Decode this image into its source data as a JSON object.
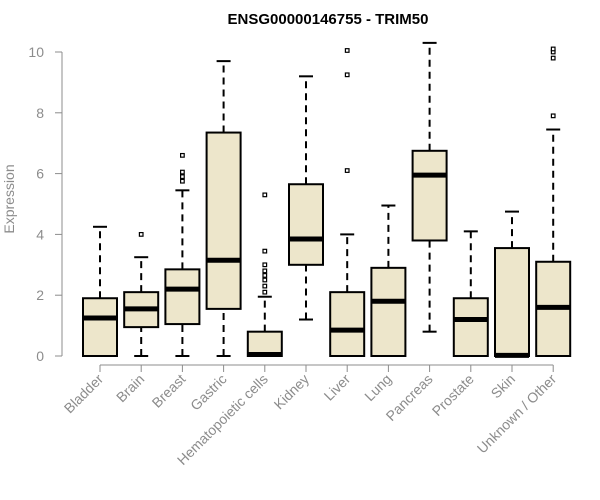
{
  "chart_data": {
    "type": "box",
    "title": "ENSG00000146755 - TRIM50",
    "ylabel": "Expression",
    "xlabel": "",
    "ylim": [
      0,
      10
    ],
    "yticks": [
      0,
      2,
      4,
      6,
      8,
      10
    ],
    "categories": [
      "Bladder",
      "Brain",
      "Breast",
      "Gastric",
      "Hematopoietic cells",
      "Kidney",
      "Liver",
      "Lung",
      "Pancreas",
      "Prostate",
      "Skin",
      "Unknown / Other"
    ],
    "boxes": [
      {
        "category": "Bladder",
        "min": 0,
        "q1": 0,
        "median": 1.25,
        "q3": 1.9,
        "max": 4.25,
        "outliers": []
      },
      {
        "category": "Brain",
        "min": 0,
        "q1": 0.95,
        "median": 1.55,
        "q3": 2.1,
        "max": 3.25,
        "outliers": [
          4.0
        ]
      },
      {
        "category": "Breast",
        "min": 0,
        "q1": 1.05,
        "median": 2.2,
        "q3": 2.85,
        "max": 5.45,
        "outliers": [
          5.75,
          5.9,
          6.05,
          6.6
        ]
      },
      {
        "category": "Gastric",
        "min": 0,
        "q1": 1.55,
        "median": 3.15,
        "q3": 7.35,
        "max": 9.7,
        "outliers": []
      },
      {
        "category": "Hematopoietic cells",
        "min": 0,
        "q1": 0,
        "median": 0.05,
        "q3": 0.8,
        "max": 1.95,
        "outliers": [
          2.1,
          2.3,
          2.5,
          2.65,
          2.8,
          3.0,
          3.45,
          5.3
        ]
      },
      {
        "category": "Kidney",
        "min": 1.2,
        "q1": 3.0,
        "median": 3.85,
        "q3": 5.65,
        "max": 9.2,
        "outliers": []
      },
      {
        "category": "Liver",
        "min": 0,
        "q1": 0,
        "median": 0.85,
        "q3": 2.1,
        "max": 4.0,
        "outliers": [
          6.1,
          9.25,
          10.05
        ]
      },
      {
        "category": "Lung",
        "min": 0,
        "q1": 0,
        "median": 1.8,
        "q3": 2.9,
        "max": 4.95,
        "outliers": []
      },
      {
        "category": "Pancreas",
        "min": 0.8,
        "q1": 3.8,
        "median": 5.95,
        "q3": 6.75,
        "max": 10.3,
        "outliers": []
      },
      {
        "category": "Prostate",
        "min": 0,
        "q1": 0,
        "median": 1.2,
        "q3": 1.9,
        "max": 4.1,
        "outliers": []
      },
      {
        "category": "Skin",
        "min": 0,
        "q1": 0,
        "median": 0.02,
        "q3": 3.55,
        "max": 4.75,
        "outliers": []
      },
      {
        "category": "Unknown / Other",
        "min": 0,
        "q1": 0,
        "median": 1.6,
        "q3": 3.1,
        "max": 7.45,
        "outliers": [
          7.9,
          9.8,
          10.0,
          10.1
        ]
      }
    ],
    "box_fill": "#ede6cb",
    "box_stroke": "#000000",
    "axis_color": "#8c8c8c",
    "grid": false
  }
}
